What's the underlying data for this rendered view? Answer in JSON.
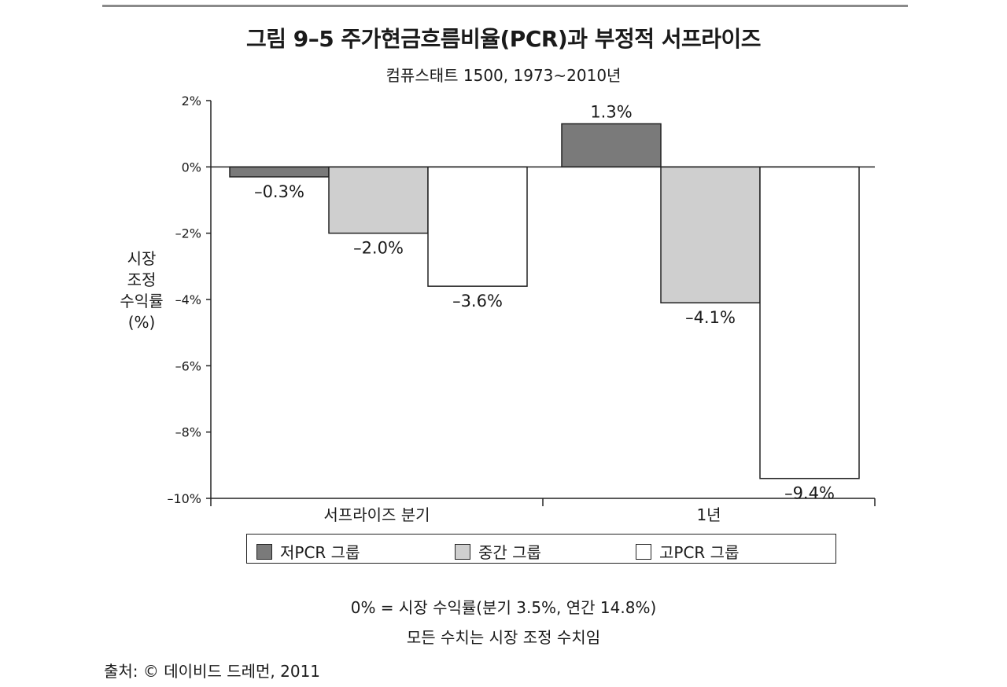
{
  "title": "그림 9–5  주가현금흐름비율(PCR)과 부정적 서프라이즈",
  "subtitle": "컴퓨스태트 1500, 1973~2010년",
  "chart_data": {
    "type": "bar",
    "categories": [
      "서프라이즈 분기",
      "1년"
    ],
    "series": [
      {
        "name": "저PCR 그룹",
        "values": [
          -0.3,
          1.3
        ],
        "labels": [
          "–0.3%",
          "1.3%"
        ],
        "color": "#7a7a7a"
      },
      {
        "name": "중간 그룹",
        "values": [
          -2.0,
          -4.1
        ],
        "labels": [
          "–2.0%",
          "–4.1%"
        ],
        "color": "#cfcfcf"
      },
      {
        "name": "고PCR 그룹",
        "values": [
          -3.6,
          -9.4
        ],
        "labels": [
          "–3.6%",
          "–9.4%"
        ],
        "color": "#ffffff"
      }
    ],
    "ylabel": "시장\n조정\n수익률\n(%)",
    "ylim": [
      -10,
      2
    ],
    "yticks": [
      2,
      0,
      -2,
      -4,
      -6,
      -8,
      -10
    ],
    "ytick_labels": [
      "2%",
      "0%",
      "–2%",
      "–4%",
      "–6%",
      "–8%",
      "–10%"
    ],
    "legend_position": "bottom"
  },
  "notes": [
    "0% = 시장 수익률(분기 3.5%, 연간 14.8%)",
    "모든 수치는 시장 조정 수치임"
  ],
  "source": "출처: © 데이비드 드레먼, 2011"
}
